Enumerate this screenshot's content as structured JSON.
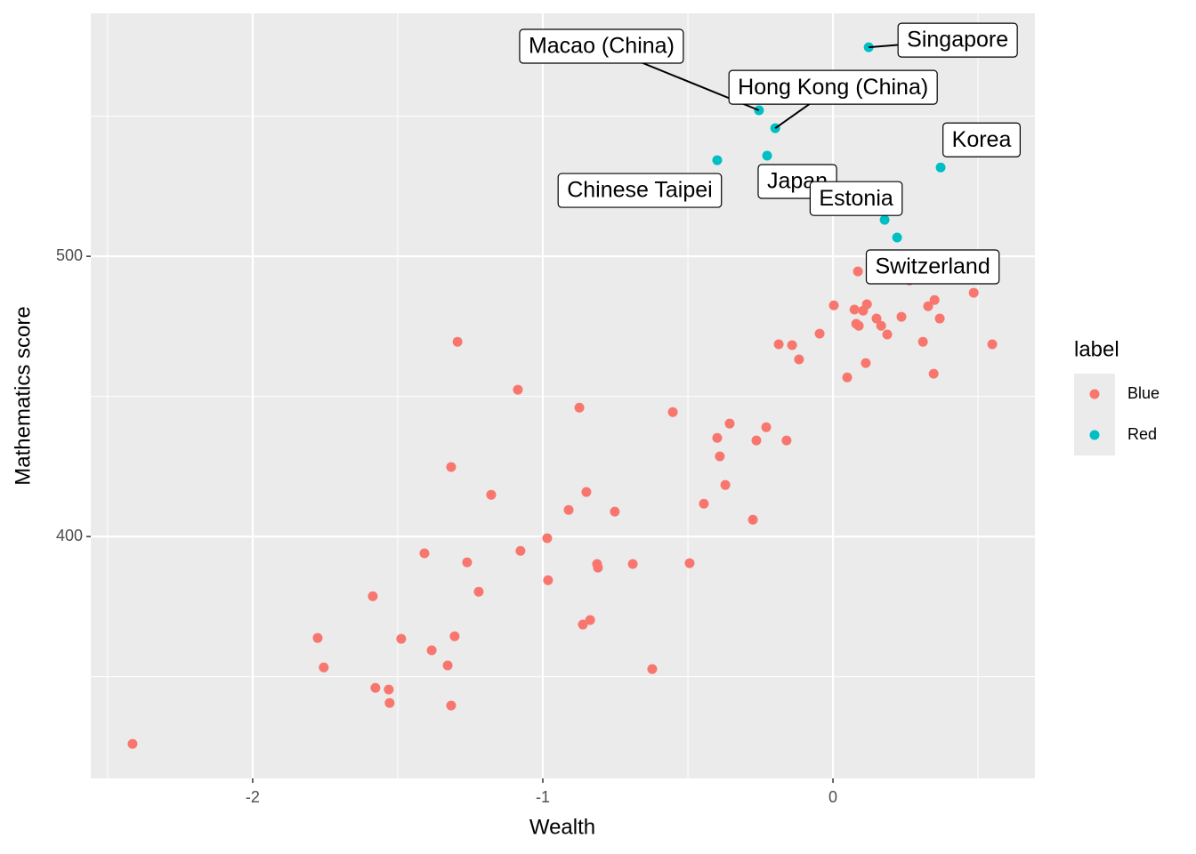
{
  "chart_data": {
    "type": "scatter",
    "x_label": "Wealth",
    "y_label": "Mathematics score",
    "legend_title": "label",
    "legend_position": "right",
    "grid": true,
    "xlim": [
      -2.558,
      0.696
    ],
    "ylim": [
      313.7,
      586.7
    ],
    "xticks": [
      -2,
      -1,
      0
    ],
    "yticks": [
      400,
      500
    ],
    "minor_xticks": [
      -2.5,
      -1.5,
      -0.5,
      0.5
    ],
    "minor_yticks": [
      350,
      450,
      550
    ],
    "series": [
      {
        "name": "Blue",
        "color": "#F8766D",
        "x": [
          -2.414,
          -1.776,
          -1.755,
          -1.586,
          -1.577,
          -1.531,
          -1.528,
          -1.488,
          -1.408,
          -1.383,
          -1.328,
          -1.316,
          -1.316,
          -1.304,
          -1.294,
          -1.261,
          -1.221,
          -1.178,
          -1.086,
          -1.077,
          -0.985,
          -0.982,
          -0.911,
          -0.874,
          -0.862,
          -0.85,
          -0.837,
          -0.813,
          -0.81,
          -0.752,
          -0.69,
          -0.623,
          -0.552,
          -0.494,
          -0.445,
          -0.399,
          -0.39,
          -0.371,
          -0.356,
          -0.276,
          -0.264,
          -0.23,
          -0.187,
          -0.16,
          -0.141,
          -0.117,
          -0.046,
          0.003,
          0.049,
          0.074,
          0.08,
          0.089,
          0.086,
          0.104,
          0.117,
          0.113,
          0.15,
          0.166,
          0.187,
          0.236,
          0.264,
          0.31,
          0.328,
          0.35,
          0.347,
          0.368,
          0.485,
          0.549
        ],
        "values": [
          326.0,
          363.8,
          353.3,
          378.7,
          346.0,
          345.4,
          340.6,
          363.5,
          394.0,
          359.4,
          354.0,
          424.8,
          339.7,
          364.4,
          469.5,
          390.8,
          380.3,
          414.9,
          452.4,
          394.9,
          399.4,
          384.4,
          409.5,
          446.0,
          368.6,
          415.9,
          370.2,
          390.2,
          388.9,
          408.9,
          390.2,
          352.7,
          444.4,
          390.5,
          411.7,
          435.2,
          428.6,
          418.4,
          440.3,
          406.0,
          434.3,
          439.0,
          468.6,
          434.3,
          468.3,
          463.2,
          472.4,
          482.5,
          456.8,
          481.0,
          475.9,
          475.2,
          494.6,
          480.6,
          482.9,
          461.9,
          477.8,
          475.2,
          472.1,
          478.4,
          491.4,
          469.5,
          482.2,
          484.4,
          458.1,
          477.8,
          487.0,
          468.6
        ]
      },
      {
        "name": "Red",
        "color": "#00BFC4",
        "x": [
          0.123,
          -0.255,
          -0.199,
          -0.399,
          -0.227,
          0.371,
          0.178,
          0.221
        ],
        "values": [
          574.6,
          552.1,
          545.7,
          534.3,
          535.9,
          531.7,
          513.0,
          506.7
        ],
        "labels": [
          "Singapore",
          "Macao (China)",
          "Hong Kong (China)",
          "Chinese Taipei",
          "Japan",
          "Korea",
          "Estonia",
          "Switzerland"
        ]
      }
    ]
  }
}
